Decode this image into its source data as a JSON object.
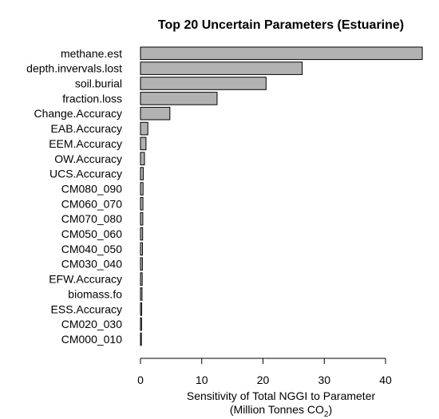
{
  "chart_data": {
    "type": "bar",
    "orientation": "horizontal",
    "title": "Top 20 Uncertain Parameters (Estuarine)",
    "xlabel_line1": "Sensitivity of Total NGGI to Parameter",
    "xlabel_line2_prefix": "(Million Tonnes CO",
    "xlabel_line2_sub": "2",
    "xlabel_line2_suffix": ")",
    "xlim": [
      0,
      46
    ],
    "xticks": [
      0,
      10,
      20,
      30,
      40
    ],
    "grid": false,
    "bar_color": "#b2b2b2",
    "categories": [
      "methane.est",
      "depth.invervals.lost",
      "soil.burial",
      "fraction.loss",
      "Change.Accuracy",
      "EAB.Accuracy",
      "EEM.Accuracy",
      "OW.Accuracy",
      "UCS.Accuracy",
      "CM080_090",
      "CM060_070",
      "CM070_080",
      "CM050_060",
      "CM040_050",
      "CM030_040",
      "EFW.Accuracy",
      "biomass.fo",
      "ESS.Accuracy",
      "CM020_030",
      "CM000_010"
    ],
    "values": [
      46,
      26.4,
      20.5,
      12.5,
      4.8,
      1.2,
      0.9,
      0.65,
      0.45,
      0.42,
      0.4,
      0.38,
      0.35,
      0.33,
      0.31,
      0.28,
      0.25,
      0.2,
      0.18,
      0.15
    ]
  }
}
